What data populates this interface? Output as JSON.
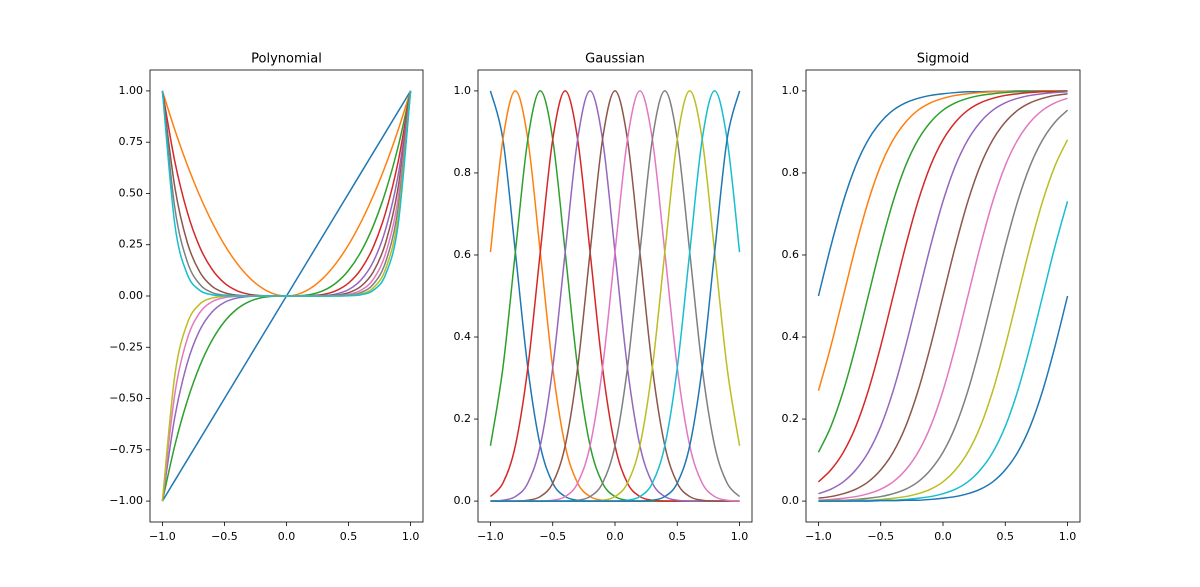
{
  "chart_data": [
    {
      "type": "line",
      "title": "Polynomial",
      "x": [
        -1,
        -0.9,
        -0.8,
        -0.7,
        -0.6,
        -0.5,
        -0.4,
        -0.3,
        -0.2,
        -0.1,
        0,
        0.1,
        0.2,
        0.3,
        0.4,
        0.5,
        0.6,
        0.7,
        0.8,
        0.9,
        1
      ],
      "xlim": [
        -1.1,
        1.1
      ],
      "ylim": [
        -1.102,
        1.102
      ],
      "xticks": [
        {
          "value": -1,
          "label": "−1.0"
        },
        {
          "value": -0.5,
          "label": "−0.5"
        },
        {
          "value": 0,
          "label": "0.0"
        },
        {
          "value": 0.5,
          "label": "0.5"
        },
        {
          "value": 1,
          "label": "1.0"
        }
      ],
      "yticks": [
        {
          "value": -1,
          "label": "−1.00"
        },
        {
          "value": -0.75,
          "label": "−0.75"
        },
        {
          "value": -0.5,
          "label": "−0.50"
        },
        {
          "value": -0.25,
          "label": "−0.25"
        },
        {
          "value": 0,
          "label": "0.00"
        },
        {
          "value": 0.25,
          "label": "0.25"
        },
        {
          "value": 0.5,
          "label": "0.50"
        },
        {
          "value": 0.75,
          "label": "0.75"
        },
        {
          "value": 1,
          "label": "1.00"
        }
      ],
      "series": [
        {
          "color": "#1f77b4",
          "values": [
            -1,
            -0.9,
            -0.8,
            -0.7,
            -0.6,
            -0.5,
            -0.4,
            -0.3,
            -0.2,
            -0.1,
            0,
            0.1,
            0.2,
            0.3,
            0.4,
            0.5,
            0.6,
            0.7,
            0.8,
            0.9,
            1
          ]
        },
        {
          "color": "#ff7f0e",
          "values": [
            1,
            0.81,
            0.64,
            0.49,
            0.36,
            0.25,
            0.16,
            0.09,
            0.04,
            0.01,
            0,
            0.01,
            0.04,
            0.09,
            0.16,
            0.25,
            0.36,
            0.49,
            0.64,
            0.81,
            1
          ]
        },
        {
          "color": "#2ca02c",
          "values": [
            -1,
            -0.729,
            -0.512,
            -0.343,
            -0.216,
            -0.125,
            -0.064,
            -0.027,
            -0.008,
            -0.001,
            0,
            0.001,
            0.008,
            0.027,
            0.064,
            0.125,
            0.216,
            0.343,
            0.512,
            0.729,
            1
          ]
        },
        {
          "color": "#d62728",
          "values": [
            1,
            0.656,
            0.41,
            0.24,
            0.13,
            0.063,
            0.026,
            0.008,
            0.002,
            0,
            0,
            0,
            0.002,
            0.008,
            0.026,
            0.063,
            0.13,
            0.24,
            0.41,
            0.656,
            1
          ]
        },
        {
          "color": "#9467bd",
          "values": [
            -1,
            -0.59,
            -0.328,
            -0.168,
            -0.078,
            -0.031,
            -0.01,
            -0.002,
            0,
            0,
            0,
            0,
            0,
            0.002,
            0.01,
            0.031,
            0.078,
            0.168,
            0.328,
            0.59,
            1
          ]
        },
        {
          "color": "#8c564b",
          "values": [
            1,
            0.531,
            0.262,
            0.118,
            0.047,
            0.016,
            0.004,
            0.001,
            0,
            0,
            0,
            0,
            0,
            0.001,
            0.004,
            0.016,
            0.047,
            0.118,
            0.262,
            0.531,
            1
          ]
        },
        {
          "color": "#e377c2",
          "values": [
            -1,
            -0.478,
            -0.21,
            -0.082,
            -0.028,
            -0.008,
            -0.002,
            0,
            0,
            0,
            0,
            0,
            0,
            0,
            0.002,
            0.008,
            0.028,
            0.082,
            0.21,
            0.478,
            1
          ]
        },
        {
          "color": "#7f7f7f",
          "values": [
            1,
            0.43,
            0.168,
            0.058,
            0.017,
            0.004,
            0.001,
            0,
            0,
            0,
            0,
            0,
            0,
            0,
            0.001,
            0.004,
            0.017,
            0.058,
            0.168,
            0.43,
            1
          ]
        },
        {
          "color": "#bcbd22",
          "values": [
            -1,
            -0.387,
            -0.134,
            -0.04,
            -0.01,
            -0.002,
            0,
            0,
            0,
            0,
            0,
            0,
            0,
            0,
            0,
            0.002,
            0.01,
            0.04,
            0.134,
            0.387,
            1
          ]
        },
        {
          "color": "#17becf",
          "values": [
            1,
            0.349,
            0.107,
            0.028,
            0.006,
            0.001,
            0,
            0,
            0,
            0,
            0,
            0,
            0,
            0,
            0,
            0.001,
            0.006,
            0.028,
            0.107,
            0.349,
            1
          ]
        }
      ]
    },
    {
      "type": "line",
      "title": "Gaussian",
      "x": [
        -1,
        -0.9,
        -0.8,
        -0.7,
        -0.6,
        -0.5,
        -0.4,
        -0.3,
        -0.2,
        -0.1,
        0,
        0.1,
        0.2,
        0.3,
        0.4,
        0.5,
        0.6,
        0.7,
        0.8,
        0.9,
        1
      ],
      "xlim": [
        -1.1,
        1.1
      ],
      "ylim": [
        -0.051,
        1.051
      ],
      "xticks": [
        {
          "value": -1,
          "label": "−1.0"
        },
        {
          "value": -0.5,
          "label": "−0.5"
        },
        {
          "value": 0,
          "label": "0.0"
        },
        {
          "value": 0.5,
          "label": "0.5"
        },
        {
          "value": 1,
          "label": "1.0"
        }
      ],
      "yticks": [
        {
          "value": 0,
          "label": "0.0"
        },
        0.2,
        0.4,
        0.6,
        0.8,
        {
          "value": 1,
          "label": "1.0"
        }
      ],
      "series": [
        {
          "color": "#1f77b4",
          "values": [
            1,
            0.882,
            0.607,
            0.325,
            0.135,
            0.044,
            0.011,
            0.002,
            0,
            0,
            0,
            0,
            0,
            0,
            0,
            0,
            0,
            0,
            0,
            0,
            0
          ]
        },
        {
          "color": "#ff7f0e",
          "values": [
            0.607,
            0.882,
            1,
            0.882,
            0.607,
            0.325,
            0.135,
            0.044,
            0.011,
            0.002,
            0,
            0,
            0,
            0,
            0,
            0,
            0,
            0,
            0,
            0,
            0
          ]
        },
        {
          "color": "#2ca02c",
          "values": [
            0.135,
            0.325,
            0.607,
            0.882,
            1,
            0.882,
            0.607,
            0.325,
            0.135,
            0.044,
            0.011,
            0.002,
            0,
            0,
            0,
            0,
            0,
            0,
            0,
            0,
            0
          ]
        },
        {
          "color": "#d62728",
          "values": [
            0.011,
            0.044,
            0.135,
            0.325,
            0.607,
            0.882,
            1,
            0.882,
            0.607,
            0.325,
            0.135,
            0.044,
            0.011,
            0.002,
            0,
            0,
            0,
            0,
            0,
            0,
            0
          ]
        },
        {
          "color": "#9467bd",
          "values": [
            0,
            0.002,
            0.011,
            0.044,
            0.135,
            0.325,
            0.607,
            0.882,
            1,
            0.882,
            0.607,
            0.325,
            0.135,
            0.044,
            0.011,
            0.002,
            0,
            0,
            0,
            0,
            0
          ]
        },
        {
          "color": "#8c564b",
          "values": [
            0,
            0,
            0,
            0.002,
            0.011,
            0.044,
            0.135,
            0.325,
            0.607,
            0.882,
            1,
            0.882,
            0.607,
            0.325,
            0.135,
            0.044,
            0.011,
            0.002,
            0,
            0,
            0
          ]
        },
        {
          "color": "#e377c2",
          "values": [
            0,
            0,
            0,
            0,
            0,
            0.002,
            0.011,
            0.044,
            0.135,
            0.325,
            0.607,
            0.882,
            1,
            0.882,
            0.607,
            0.325,
            0.135,
            0.044,
            0.011,
            0.002,
            0
          ]
        },
        {
          "color": "#7f7f7f",
          "values": [
            0,
            0,
            0,
            0,
            0,
            0,
            0,
            0.002,
            0.011,
            0.044,
            0.135,
            0.325,
            0.607,
            0.882,
            1,
            0.882,
            0.607,
            0.325,
            0.135,
            0.044,
            0.011
          ]
        },
        {
          "color": "#bcbd22",
          "values": [
            0,
            0,
            0,
            0,
            0,
            0,
            0,
            0,
            0,
            0.002,
            0.011,
            0.044,
            0.135,
            0.325,
            0.607,
            0.882,
            1,
            0.882,
            0.607,
            0.325,
            0.135
          ]
        },
        {
          "color": "#17becf",
          "values": [
            0,
            0,
            0,
            0,
            0,
            0,
            0,
            0,
            0,
            0,
            0,
            0.002,
            0.011,
            0.044,
            0.135,
            0.325,
            0.607,
            0.882,
            1,
            0.882,
            0.607
          ]
        },
        {
          "color": "#1f77b4",
          "values": [
            0,
            0,
            0,
            0,
            0,
            0,
            0,
            0,
            0,
            0,
            0,
            0,
            0,
            0.002,
            0.011,
            0.044,
            0.135,
            0.325,
            0.607,
            0.882,
            1
          ]
        }
      ]
    },
    {
      "type": "line",
      "title": "Sigmoid",
      "x": [
        -1,
        -0.9,
        -0.8,
        -0.7,
        -0.6,
        -0.5,
        -0.4,
        -0.3,
        -0.2,
        -0.1,
        0,
        0.1,
        0.2,
        0.3,
        0.4,
        0.5,
        0.6,
        0.7,
        0.8,
        0.9,
        1
      ],
      "xlim": [
        -1.1,
        1.1
      ],
      "ylim": [
        -0.051,
        1.051
      ],
      "xticks": [
        {
          "value": -1,
          "label": "−1.0"
        },
        {
          "value": -0.5,
          "label": "−0.5"
        },
        {
          "value": 0,
          "label": "0.0"
        },
        {
          "value": 0.5,
          "label": "0.5"
        },
        {
          "value": 1,
          "label": "1.0"
        }
      ],
      "yticks": [
        {
          "value": 0,
          "label": "0.0"
        },
        0.2,
        0.4,
        0.6,
        0.8,
        {
          "value": 1,
          "label": "1.0"
        }
      ],
      "series": [
        {
          "color": "#1f77b4",
          "values": [
            0.5,
            0.622,
            0.731,
            0.818,
            0.881,
            0.924,
            0.953,
            0.971,
            0.982,
            0.989,
            0.993,
            0.996,
            0.998,
            0.998,
            0.999,
            0.999,
            1,
            1,
            1,
            1,
            1
          ]
        },
        {
          "color": "#ff7f0e",
          "values": [
            0.269,
            0.378,
            0.5,
            0.622,
            0.731,
            0.818,
            0.881,
            0.924,
            0.953,
            0.971,
            0.982,
            0.989,
            0.993,
            0.996,
            0.998,
            0.998,
            0.999,
            0.999,
            1,
            1,
            1
          ]
        },
        {
          "color": "#2ca02c",
          "values": [
            0.119,
            0.182,
            0.269,
            0.378,
            0.5,
            0.622,
            0.731,
            0.818,
            0.881,
            0.924,
            0.953,
            0.971,
            0.982,
            0.989,
            0.993,
            0.996,
            0.998,
            0.998,
            0.999,
            0.999,
            1
          ]
        },
        {
          "color": "#d62728",
          "values": [
            0.047,
            0.076,
            0.119,
            0.182,
            0.269,
            0.378,
            0.5,
            0.622,
            0.731,
            0.818,
            0.881,
            0.924,
            0.953,
            0.971,
            0.982,
            0.989,
            0.993,
            0.996,
            0.998,
            0.998,
            0.999
          ]
        },
        {
          "color": "#9467bd",
          "values": [
            0.018,
            0.029,
            0.047,
            0.076,
            0.119,
            0.182,
            0.269,
            0.378,
            0.5,
            0.622,
            0.731,
            0.818,
            0.881,
            0.924,
            0.953,
            0.971,
            0.982,
            0.989,
            0.993,
            0.996,
            0.998
          ]
        },
        {
          "color": "#8c564b",
          "values": [
            0.007,
            0.011,
            0.018,
            0.029,
            0.047,
            0.076,
            0.119,
            0.182,
            0.269,
            0.378,
            0.5,
            0.622,
            0.731,
            0.818,
            0.881,
            0.924,
            0.953,
            0.971,
            0.982,
            0.989,
            0.993
          ]
        },
        {
          "color": "#e377c2",
          "values": [
            0.002,
            0.004,
            0.007,
            0.011,
            0.018,
            0.029,
            0.047,
            0.076,
            0.119,
            0.182,
            0.269,
            0.378,
            0.5,
            0.622,
            0.731,
            0.818,
            0.881,
            0.924,
            0.953,
            0.971,
            0.982
          ]
        },
        {
          "color": "#7f7f7f",
          "values": [
            0.001,
            0.002,
            0.002,
            0.004,
            0.007,
            0.011,
            0.018,
            0.029,
            0.047,
            0.076,
            0.119,
            0.182,
            0.269,
            0.378,
            0.5,
            0.622,
            0.731,
            0.818,
            0.881,
            0.924,
            0.953
          ]
        },
        {
          "color": "#bcbd22",
          "values": [
            0,
            0.001,
            0.001,
            0.002,
            0.002,
            0.004,
            0.007,
            0.011,
            0.018,
            0.029,
            0.047,
            0.076,
            0.119,
            0.182,
            0.269,
            0.378,
            0.5,
            0.622,
            0.731,
            0.818,
            0.881
          ]
        },
        {
          "color": "#17becf",
          "values": [
            0,
            0,
            0,
            0.001,
            0.001,
            0.002,
            0.002,
            0.004,
            0.007,
            0.011,
            0.018,
            0.029,
            0.047,
            0.076,
            0.119,
            0.182,
            0.269,
            0.378,
            0.5,
            0.622,
            0.731
          ]
        },
        {
          "color": "#1f77b4",
          "values": [
            0,
            0,
            0,
            0,
            0,
            0.001,
            0.001,
            0.002,
            0.002,
            0.004,
            0.007,
            0.011,
            0.018,
            0.029,
            0.047,
            0.076,
            0.119,
            0.182,
            0.269,
            0.378,
            0.5
          ]
        }
      ]
    }
  ]
}
